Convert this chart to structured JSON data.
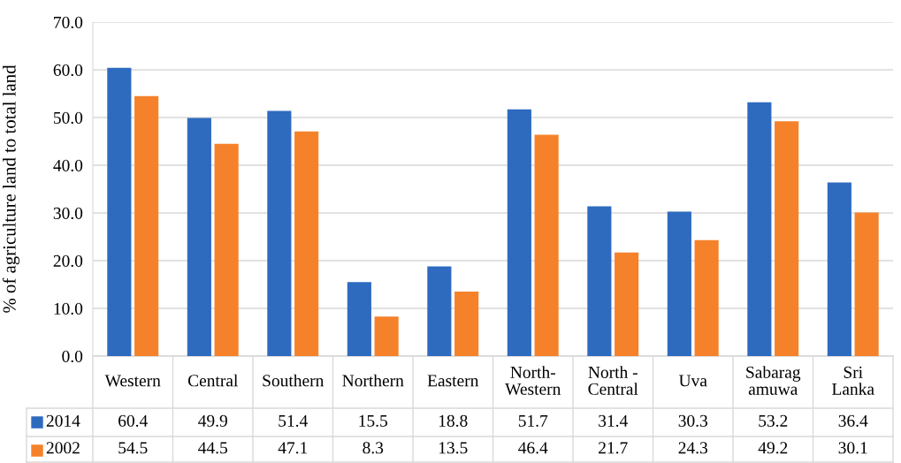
{
  "chart_data": {
    "type": "bar",
    "ylabel": "% of agriculture land to total land",
    "categories": [
      "Western",
      "Central",
      "Southern",
      "Northern",
      "Eastern",
      "North-\nWestern",
      "North -\nCentral",
      "Uva",
      "Sabarag\namuwa",
      "Sri\nLanka"
    ],
    "series": [
      {
        "name": "2014",
        "color": "#2e6bbf",
        "values": [
          60.4,
          49.9,
          51.4,
          15.5,
          18.8,
          51.7,
          31.4,
          30.3,
          53.2,
          36.4
        ]
      },
      {
        "name": "2002",
        "color": "#f5822a",
        "values": [
          54.5,
          44.5,
          47.1,
          8.3,
          13.5,
          46.4,
          21.7,
          24.3,
          49.2,
          30.1
        ]
      }
    ],
    "ylim": [
      0,
      70
    ],
    "yticks": [
      {
        "value": 0,
        "label": "0.0"
      },
      {
        "value": 10,
        "label": "10.0"
      },
      {
        "value": 20,
        "label": "20.0"
      },
      {
        "value": 30,
        "label": "30.0"
      },
      {
        "value": 40,
        "label": "40.0"
      },
      {
        "value": 50,
        "label": "50.0"
      },
      {
        "value": 60,
        "label": "60.0"
      },
      {
        "value": 70,
        "label": "70.0"
      }
    ],
    "grid": "y",
    "data_labels": true,
    "legend": "bottom left"
  }
}
